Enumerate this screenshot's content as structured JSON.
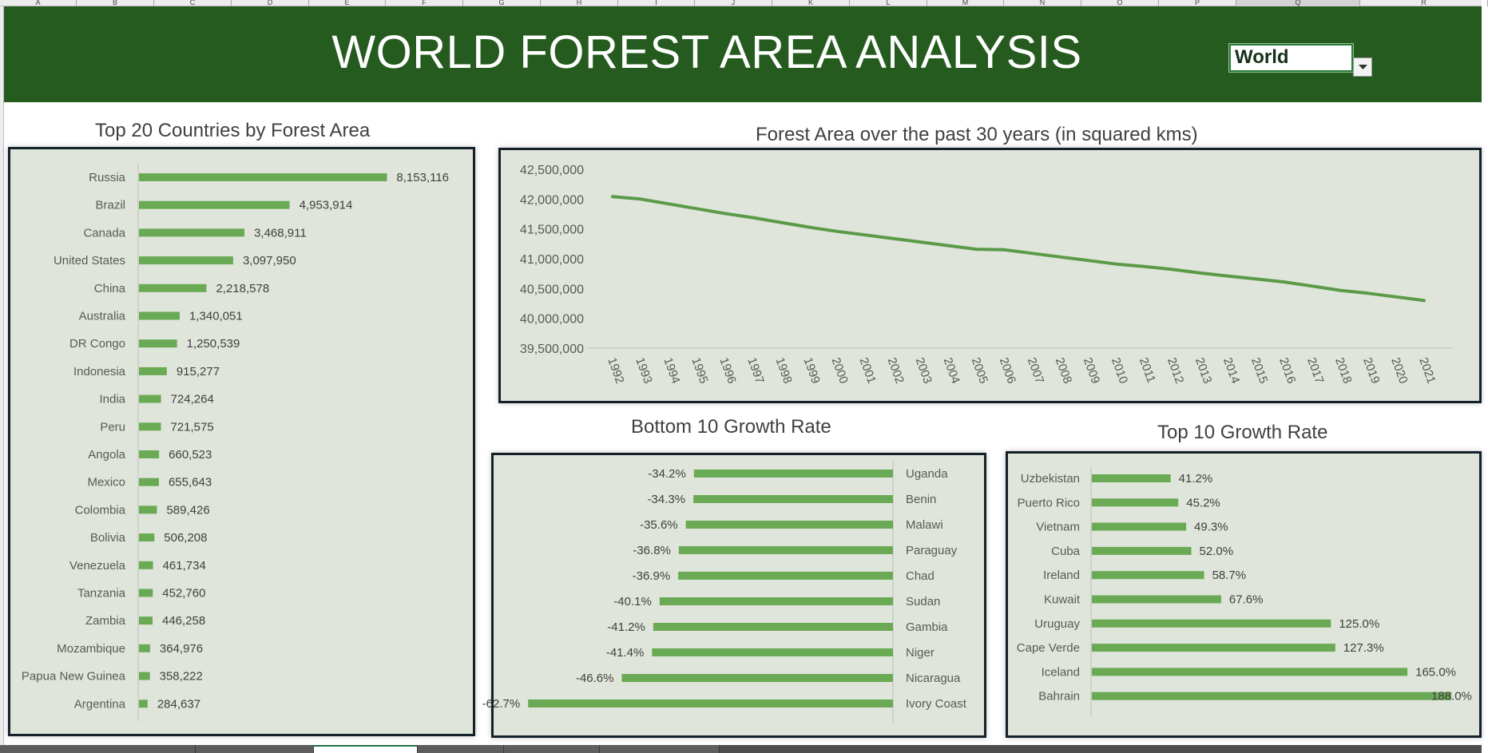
{
  "sheet": {
    "columns": [
      "A",
      "B",
      "C",
      "D",
      "E",
      "F",
      "G",
      "H",
      "I",
      "J",
      "K",
      "L",
      "M",
      "N",
      "O",
      "P",
      "Q",
      "R"
    ],
    "selected_column": "Q"
  },
  "header": {
    "title": "WORLD FOREST AREA ANALYSIS",
    "region_select": {
      "value": "World"
    }
  },
  "colors": {
    "banner": "#255b1e",
    "bar": "#6aaa55",
    "line": "#5b9a48",
    "panel": "#dfe5da",
    "panel_border": "#14212b"
  },
  "sections": {
    "top20_title": "Top 20 Countries by Forest Area",
    "trend_title": "Forest Area over the past 30 years (in squared kms)",
    "bottom10_title": "Bottom 10 Growth Rate",
    "top10_title": "Top 10 Growth Rate"
  },
  "chart_data": [
    {
      "id": "top20",
      "type": "bar",
      "orientation": "horizontal",
      "categories": [
        "Russia",
        "Brazil",
        "Canada",
        "United States",
        "China",
        "Australia",
        "DR Congo",
        "Indonesia",
        "India",
        "Peru",
        "Angola",
        "Mexico",
        "Colombia",
        "Bolivia",
        "Venezuela",
        "Tanzania",
        "Zambia",
        "Mozambique",
        "Papua New Guinea",
        "Argentina"
      ],
      "values": [
        8153116,
        4953914,
        3468911,
        3097950,
        2218578,
        1340051,
        1250539,
        915277,
        724264,
        721575,
        660523,
        655643,
        589426,
        506208,
        461734,
        452760,
        446258,
        364976,
        358222,
        284637
      ],
      "data_labels": [
        "8,153,116",
        "4,953,914",
        "3,468,911",
        "3,097,950",
        "2,218,578",
        "1,340,051",
        "1,250,539",
        "915,277",
        "724,264",
        "721,575",
        "660,523",
        "655,643",
        "589,426",
        "506,208",
        "461,734",
        "452,760",
        "446,258",
        "364,976",
        "358,222",
        "284,637"
      ],
      "xlim": [
        0,
        8300000
      ]
    },
    {
      "id": "trend",
      "type": "line",
      "x": [
        "1992",
        "1993",
        "1994",
        "1995",
        "1996",
        "1997",
        "1998",
        "1999",
        "2000",
        "2001",
        "2002",
        "2003",
        "2004",
        "2005",
        "2006",
        "2007",
        "2008",
        "2009",
        "2010",
        "2011",
        "2012",
        "2013",
        "2014",
        "2015",
        "2016",
        "2017",
        "2018",
        "2019",
        "2020",
        "2021"
      ],
      "values": [
        42040000,
        42000000,
        41920000,
        41840000,
        41760000,
        41690000,
        41610000,
        41530000,
        41460000,
        41400000,
        41340000,
        41280000,
        41220000,
        41160000,
        41150000,
        41090000,
        41030000,
        40970000,
        40910000,
        40870000,
        40820000,
        40760000,
        40710000,
        40660000,
        40610000,
        40540000,
        40470000,
        40420000,
        40360000,
        40300000
      ],
      "ylim": [
        39500000,
        42500000
      ],
      "yticks": [
        "42,500,000",
        "42,000,000",
        "41,500,000",
        "41,000,000",
        "40,500,000",
        "40,000,000",
        "39,500,000"
      ],
      "ytick_values": [
        42500000,
        42000000,
        41500000,
        41000000,
        40500000,
        40000000,
        39500000
      ]
    },
    {
      "id": "bottom10",
      "type": "bar",
      "orientation": "horizontal",
      "direction": "negative",
      "categories": [
        "Uganda",
        "Benin",
        "Malawi",
        "Paraguay",
        "Chad",
        "Sudan",
        "Gambia",
        "Niger",
        "Nicaragua",
        "Ivory Coast"
      ],
      "values": [
        -34.2,
        -34.3,
        -35.6,
        -36.8,
        -36.9,
        -40.1,
        -41.2,
        -41.4,
        -46.6,
        -62.7
      ],
      "data_labels": [
        "-34.2%",
        "-34.3%",
        "-35.6%",
        "-36.8%",
        "-36.9%",
        "-40.1%",
        "-41.2%",
        "-41.4%",
        "-46.6%",
        "-62.7%"
      ],
      "xlim": [
        -70,
        0
      ]
    },
    {
      "id": "top10",
      "type": "bar",
      "orientation": "horizontal",
      "categories": [
        "Uzbekistan",
        "Puerto Rico",
        "Vietnam",
        "Cuba",
        "Ireland",
        "Kuwait",
        "Uruguay",
        "Cape Verde",
        "Iceland",
        "Bahrain"
      ],
      "values": [
        41.2,
        45.2,
        49.3,
        52.0,
        58.7,
        67.6,
        125.0,
        127.3,
        165.0,
        188.0
      ],
      "data_labels": [
        "41.2%",
        "45.2%",
        "49.3%",
        "52.0%",
        "58.7%",
        "67.6%",
        "125.0%",
        "127.3%",
        "165.0%",
        "188.0%"
      ],
      "xlim": [
        0,
        190
      ]
    }
  ]
}
